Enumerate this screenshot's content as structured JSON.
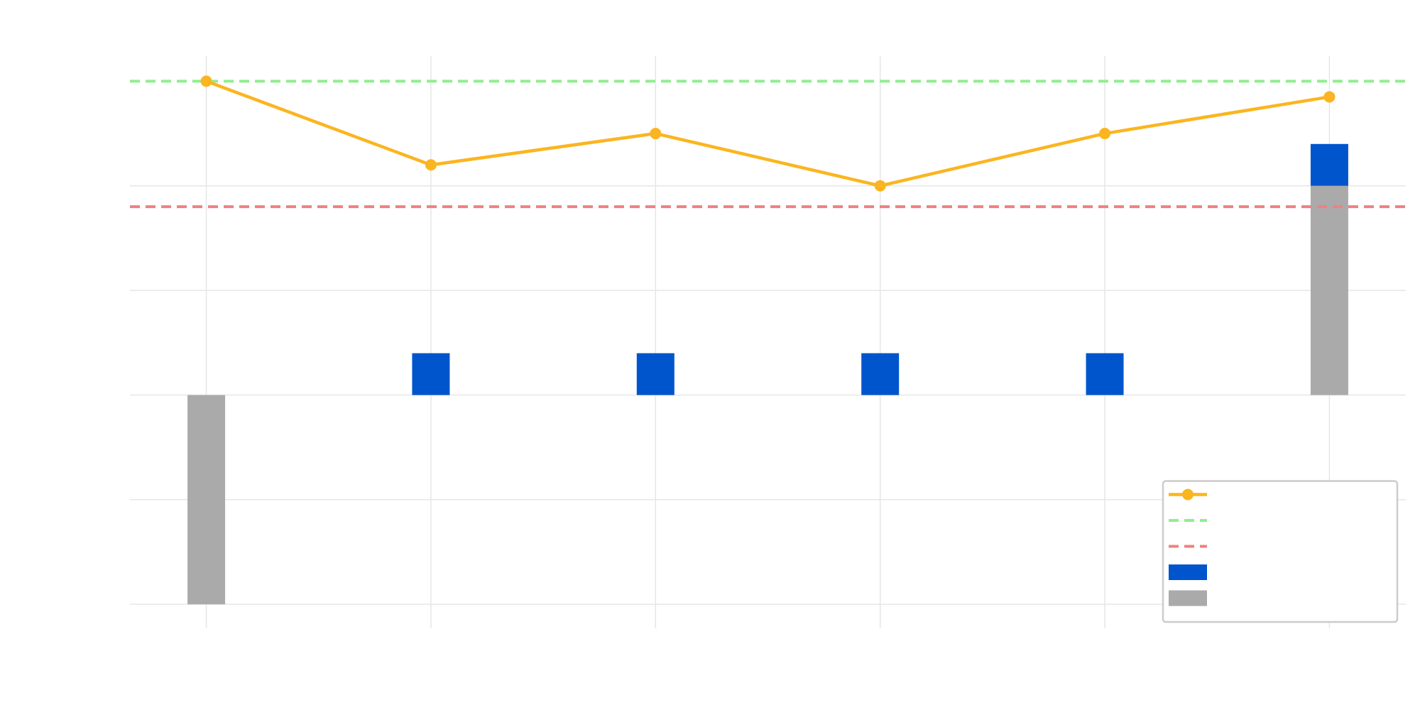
{
  "chart_data": {
    "type": "bar",
    "categories": [
      null,
      null,
      null,
      null,
      null,
      null
    ],
    "series": [
      {
        "type": "line",
        "color": "#fbb520",
        "values": [
          3.0,
          2.2,
          2.5,
          2.0,
          2.5,
          2.85
        ]
      },
      {
        "type": "bar",
        "color": "#aaaaaa",
        "values": [
          -2,
          0,
          0,
          0,
          0,
          2
        ]
      },
      {
        "type": "bar",
        "color": "#0055cc",
        "values": [
          0,
          0.4,
          0.4,
          0.4,
          0.4,
          0.4
        ]
      }
    ],
    "stacked": true,
    "hlines": [
      {
        "value": 3.0,
        "color": "#90ee90"
      },
      {
        "value": 1.8,
        "color": "#f08080"
      }
    ],
    "ylim": [
      -2.23,
      3.24
    ],
    "yticks": [
      -2,
      -1,
      0,
      1,
      2
    ],
    "grid": true,
    "legend": "lower right"
  }
}
